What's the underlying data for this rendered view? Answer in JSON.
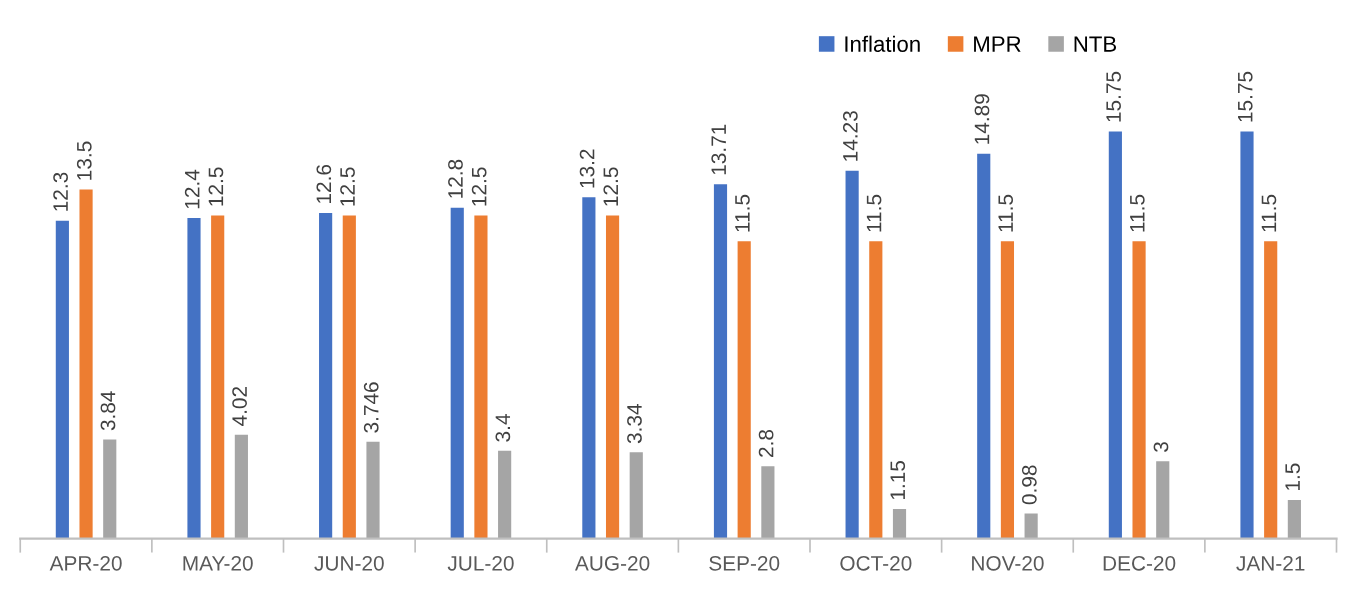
{
  "chart_data": {
    "type": "bar",
    "categories": [
      "APR-20",
      "MAY-20",
      "JUN-20",
      "JUL-20",
      "AUG-20",
      "SEP-20",
      "OCT-20",
      "NOV-20",
      "DEC-20",
      "JAN-21"
    ],
    "series": [
      {
        "name": "Inflation",
        "color": "#4472c4",
        "values": [
          12.3,
          12.4,
          12.6,
          12.8,
          13.2,
          13.71,
          14.23,
          14.89,
          15.75,
          15.75
        ]
      },
      {
        "name": "MPR",
        "color": "#ed7d31",
        "values": [
          13.5,
          12.5,
          12.5,
          12.5,
          12.5,
          11.5,
          11.5,
          11.5,
          11.5,
          11.5
        ]
      },
      {
        "name": "NTB",
        "color": "#a5a5a5",
        "values": [
          3.84,
          4.02,
          3.746,
          3.4,
          3.34,
          2.8,
          1.15,
          0.98,
          3,
          1.5
        ]
      }
    ],
    "data_labels": true,
    "legend": "top right",
    "grid": false
  }
}
